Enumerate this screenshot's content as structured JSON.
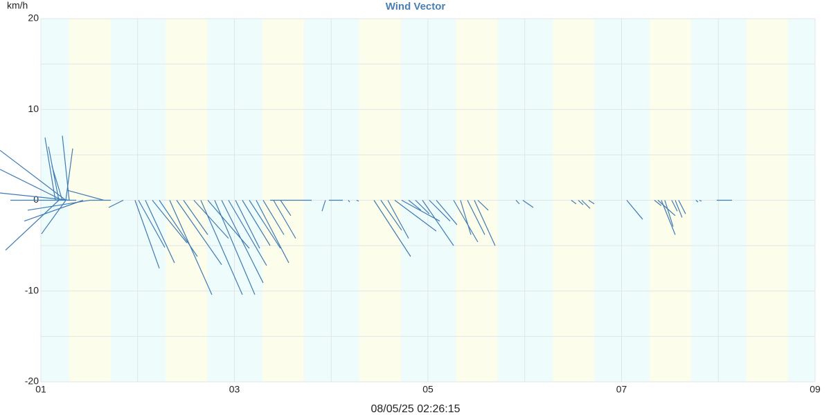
{
  "chart_data": {
    "type": "vector",
    "title": "Wind Vector",
    "y_unit": "km/h",
    "footer": "08/05/25 02:26:15",
    "color": "#3d7ab3",
    "background": "#effcfc",
    "band_color": "#fdfdeb",
    "grid": true,
    "xlim": [
      1,
      9
    ],
    "ylim": [
      -20,
      20
    ],
    "xticks": [
      {
        "value": 1,
        "label": "01"
      },
      {
        "value": 3,
        "label": "03"
      },
      {
        "value": 5,
        "label": "05"
      },
      {
        "value": 7,
        "label": "07"
      },
      {
        "value": 9,
        "label": "09"
      }
    ],
    "minor_xticks": [
      2,
      4,
      6,
      8
    ],
    "yticks": [
      -20,
      -10,
      0,
      10,
      20
    ],
    "minor_yticks": [
      -15,
      -5,
      5,
      15
    ],
    "bands": [
      [
        1.29,
        1.72
      ],
      [
        2.29,
        2.72
      ],
      [
        3.29,
        3.72
      ],
      [
        4.29,
        4.72
      ],
      [
        5.29,
        5.72
      ],
      [
        6.29,
        6.72
      ],
      [
        7.29,
        7.72
      ],
      [
        8.29,
        8.72
      ]
    ],
    "x": [
      1.258,
      1.222,
      1.186,
      1.258,
      1.15,
      1.186,
      1.293,
      1.258,
      1.222,
      1.293,
      1.365,
      1.436,
      1.508,
      1.651,
      1.723,
      1.852,
      1.973,
      2.009,
      2.08,
      2.152,
      2.224,
      2.331,
      2.403,
      2.474,
      2.581,
      2.653,
      2.725,
      2.796,
      2.868,
      2.939,
      3.011,
      3.082,
      3.154,
      3.225,
      3.297,
      3.404,
      3.476,
      3.369,
      3.941,
      3.977,
      4.177,
      4.263,
      4.442,
      4.513,
      4.585,
      4.657,
      4.728,
      4.8,
      4.871,
      4.943,
      5.014,
      5.086,
      5.265,
      5.336,
      5.408,
      5.479,
      5.515,
      5.909,
      5.98,
      6.481,
      6.553,
      6.589,
      6.66,
      7.054,
      7.34,
      7.376,
      7.411,
      7.447,
      7.519,
      7.555,
      7.59,
      7.769,
      7.805,
      7.984
    ],
    "x_end": [
      0.578,
      0.578,
      0.635,
      1.007,
      1.043,
      1.079,
      1.222,
      1.329,
      1.114,
      0.578,
      0.685,
      0.828,
      0.864,
      1.272,
      1.508,
      1.701,
      2.224,
      2.281,
      2.381,
      2.51,
      2.617,
      2.767,
      2.868,
      2.725,
      2.939,
      3.082,
      3.154,
      3.211,
      3.297,
      3.333,
      3.261,
      3.369,
      3.476,
      3.562,
      3.512,
      3.633,
      3.583,
      3.798,
      3.905,
      4.12,
      4.191,
      4.284,
      4.821,
      4.728,
      4.8,
      5.086,
      5.122,
      4.928,
      5.014,
      5.265,
      5.229,
      5.3,
      5.515,
      5.444,
      5.587,
      5.694,
      5.623,
      5.945,
      6.088,
      6.531,
      6.603,
      6.675,
      6.718,
      7.218,
      7.411,
      7.555,
      7.555,
      7.533,
      7.576,
      7.626,
      7.662,
      7.791,
      7.826,
      8.141
    ],
    "values": [
      5.5,
      3.4,
      -5.5,
      -3.7,
      6.9,
      5.9,
      7.1,
      5.7,
      3.8,
      0.8,
      0,
      -2.3,
      -1.1,
      1.1,
      0,
      -0.8,
      -7.5,
      -5.2,
      -6.9,
      -4.7,
      -6.2,
      -10.4,
      -7.1,
      -3.8,
      -4.2,
      -10.4,
      -5.3,
      -10.4,
      -9.1,
      -7.2,
      -5.3,
      -5.0,
      -5.3,
      -6.9,
      -3.8,
      -4.2,
      -1.7,
      0,
      -1.2,
      0,
      -0.2,
      -0.1,
      -6.2,
      -3.3,
      -4.2,
      -3.4,
      -2.3,
      -1.1,
      -1.5,
      -5.0,
      -2.3,
      -2.7,
      -4.6,
      -3.8,
      -3.8,
      -5.0,
      -1.1,
      -0.4,
      -0.8,
      -0.4,
      -0.5,
      -0.9,
      -0.4,
      -2.1,
      -0.6,
      -1.7,
      -3.8,
      -2.9,
      -1.2,
      -1.9,
      -1.5,
      -0.2,
      -0.1,
      0
    ]
  }
}
